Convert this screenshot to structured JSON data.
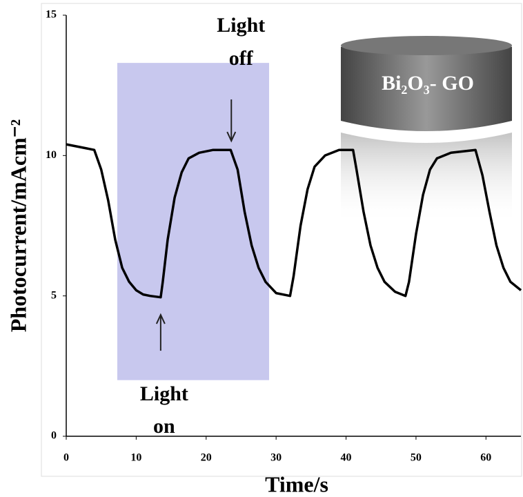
{
  "chart_data": {
    "type": "line",
    "xlabel": "Time/s",
    "ylabel": "Photocurrent/mAcm⁻²",
    "xlim": [
      0,
      65
    ],
    "ylim": [
      0,
      15
    ],
    "xticks": [
      0,
      10,
      20,
      30,
      40,
      50,
      60
    ],
    "yticks": [
      0,
      5,
      10,
      15
    ],
    "color": "#000000",
    "x": [
      0,
      2,
      4,
      5,
      6,
      7,
      8,
      9,
      10,
      11,
      12,
      13.5,
      13.8,
      14.5,
      15.5,
      16.5,
      17.5,
      19,
      21,
      23.5,
      24.5,
      25.5,
      26.5,
      27.5,
      28.5,
      30,
      32,
      32.5,
      33.5,
      34.5,
      35.5,
      37,
      39,
      41,
      41.5,
      42.5,
      43.5,
      44.5,
      45.5,
      47,
      48.5,
      49,
      50,
      51,
      52,
      53,
      55,
      58.5,
      59.5,
      60.5,
      61.5,
      62.5,
      63.5,
      65
    ],
    "values": [
      10.4,
      10.3,
      10.2,
      9.5,
      8.4,
      7.0,
      6.0,
      5.5,
      5.2,
      5.05,
      5.0,
      4.95,
      5.5,
      7.0,
      8.5,
      9.4,
      9.9,
      10.1,
      10.2,
      10.2,
      9.5,
      8.0,
      6.8,
      6.0,
      5.5,
      5.1,
      5.0,
      5.7,
      7.5,
      8.8,
      9.6,
      10.0,
      10.2,
      10.2,
      9.5,
      8.0,
      6.8,
      6.0,
      5.5,
      5.15,
      5.0,
      5.5,
      7.2,
      8.6,
      9.5,
      9.9,
      10.1,
      10.2,
      9.3,
      8.0,
      6.8,
      6.0,
      5.5,
      5.2
    ],
    "shaded_region": {
      "x": [
        7.3,
        29
      ],
      "y": [
        2,
        13.3
      ],
      "color": "#c8c8ee"
    },
    "annotations": [
      {
        "lines": [
          "Light",
          "on"
        ],
        "x": 13.5,
        "y": 4.4
      },
      {
        "lines": [
          "Light",
          "off"
        ],
        "x": 23.6,
        "y": 10.4
      },
      {
        "text": "Bi₂O₃- GO"
      }
    ]
  }
}
